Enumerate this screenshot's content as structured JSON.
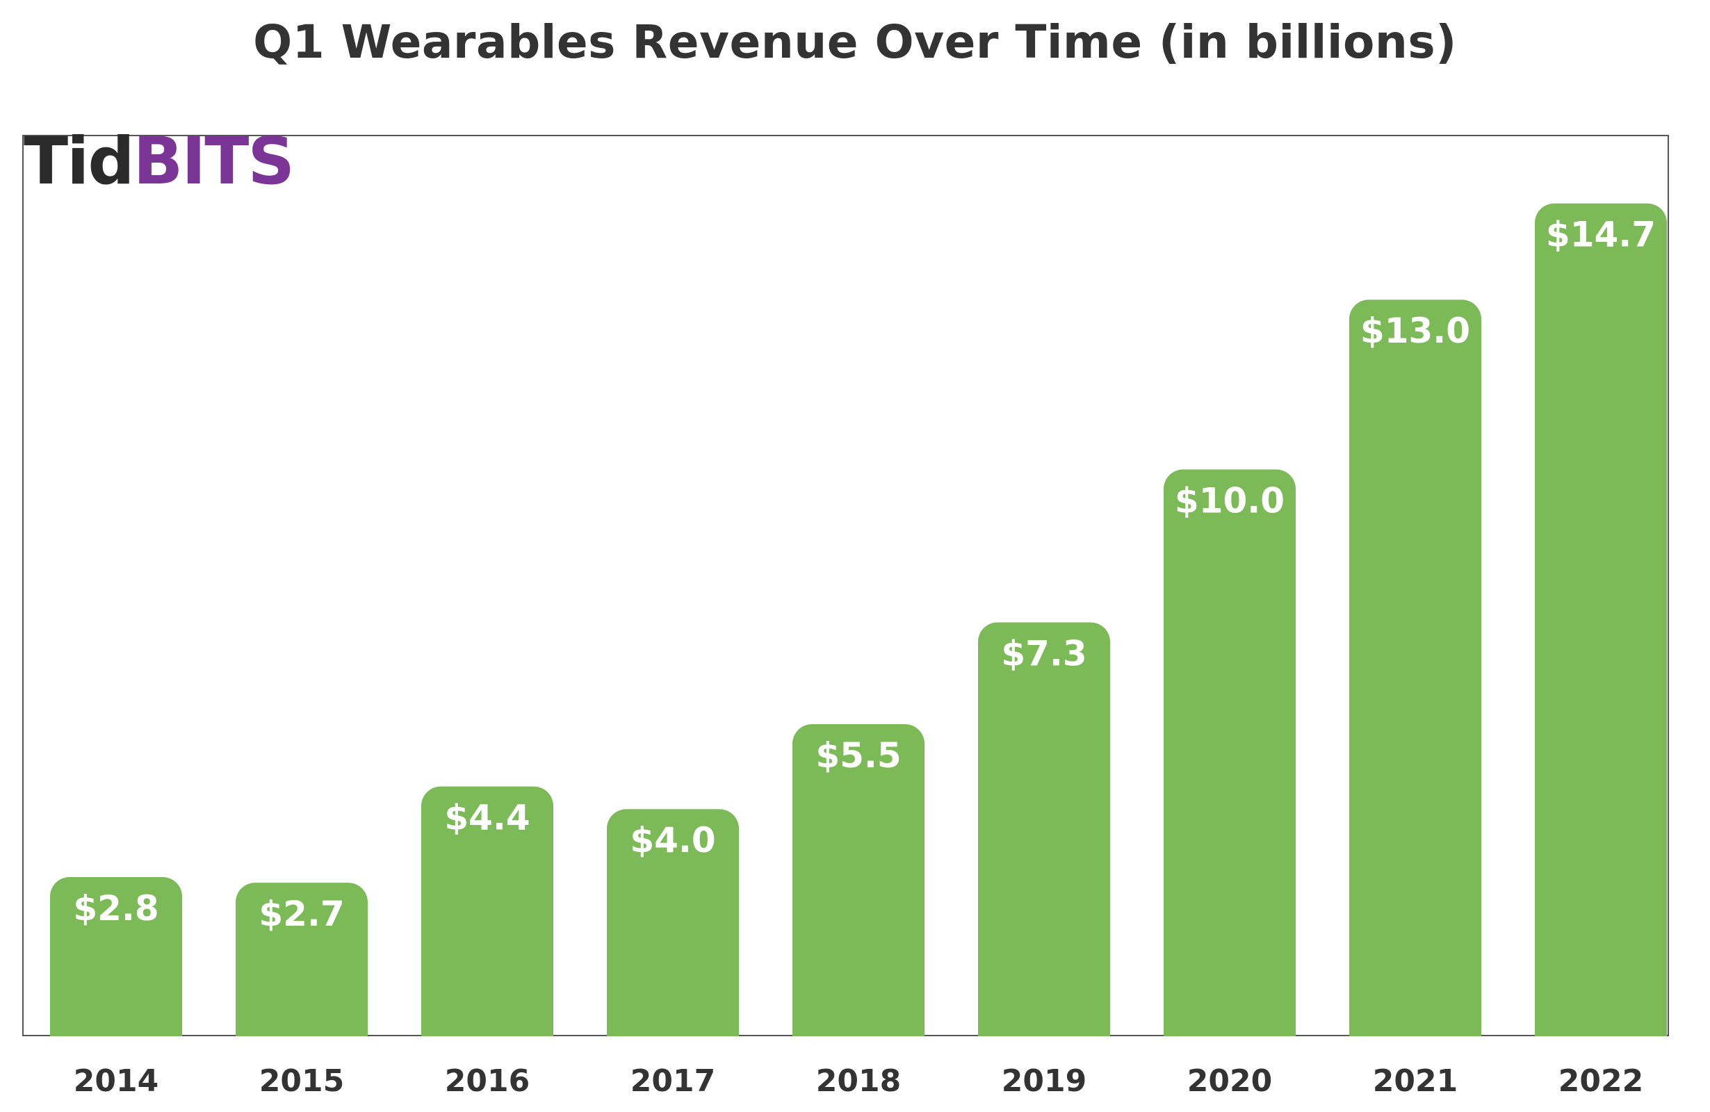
{
  "logo": {
    "part1": "Tid",
    "part2": "BITS"
  },
  "colors": {
    "bar": "#7cb957",
    "bar_label": "#ffffff",
    "tick_label": "#333333",
    "frame": "#555555",
    "logo_dark": "#2b2b2b",
    "logo_purple": "#7a3596"
  },
  "chart_data": {
    "type": "bar",
    "title": "Q1 Wearables Revenue Over Time (in billions)",
    "xlabel": "",
    "ylabel": "",
    "categories": [
      "2014",
      "2015",
      "2016",
      "2017",
      "2018",
      "2019",
      "2020",
      "2021",
      "2022"
    ],
    "values": [
      2.8,
      2.7,
      4.4,
      4.0,
      5.5,
      7.3,
      10.0,
      13.0,
      14.7
    ],
    "data_labels": [
      "$2.8",
      "$2.7",
      "$4.4",
      "$4.0",
      "$5.5",
      "$7.3",
      "$10.0",
      "$13.0",
      "$14.7"
    ],
    "ylim": [
      0,
      15.9
    ],
    "grid": false,
    "legend": "none"
  }
}
